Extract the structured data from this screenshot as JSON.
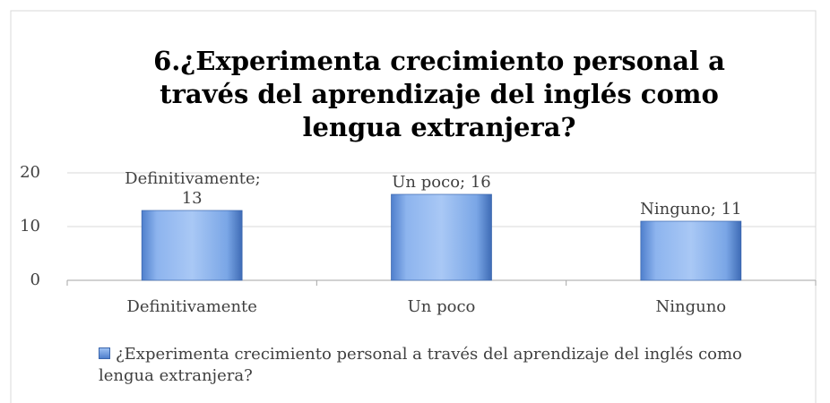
{
  "chart_data": {
    "type": "bar",
    "title": "6.¿Experimenta crecimiento personal a través del aprendizaje del inglés como lengua extranjera?",
    "categories": [
      "Definitivamente",
      "Un poco",
      "Ninguno"
    ],
    "values": [
      13,
      16,
      11
    ],
    "value_labels": [
      "Definitivamente; 13",
      "Un poco; 16",
      "Ninguno; 11"
    ],
    "series_name": "¿Experimenta crecimiento personal a través del aprendizaje del inglés como lengua extranjera?",
    "color": "#6b9be0",
    "ylim": [
      0,
      20
    ],
    "yticks": [
      0,
      10,
      20
    ],
    "grid": true,
    "legend": "bottom"
  }
}
